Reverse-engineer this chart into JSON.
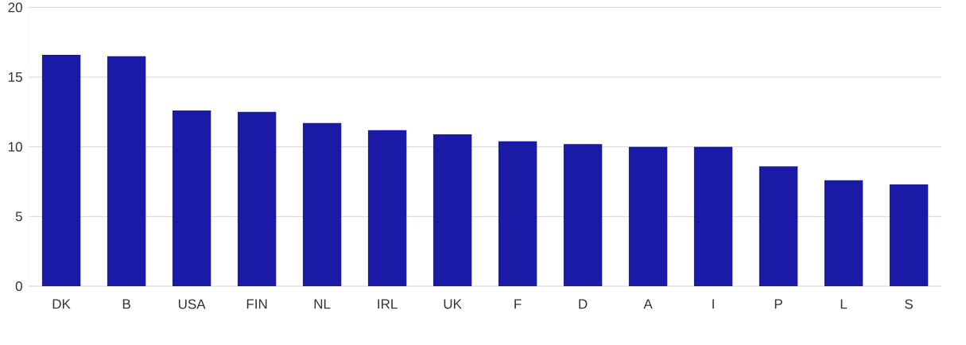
{
  "chart_data": {
    "type": "bar",
    "categories": [
      "DK",
      "B",
      "USA",
      "FIN",
      "NL",
      "IRL",
      "UK",
      "F",
      "D",
      "A",
      "I",
      "P",
      "L",
      "S"
    ],
    "values": [
      16.6,
      16.5,
      12.6,
      12.5,
      11.7,
      11.2,
      10.9,
      10.4,
      10.2,
      10.0,
      10.0,
      8.6,
      7.6,
      7.3
    ],
    "color": "#1a1aa6",
    "ylim": [
      0,
      20
    ],
    "yticks": [
      0,
      5,
      10,
      15,
      20
    ],
    "grid": "y"
  }
}
